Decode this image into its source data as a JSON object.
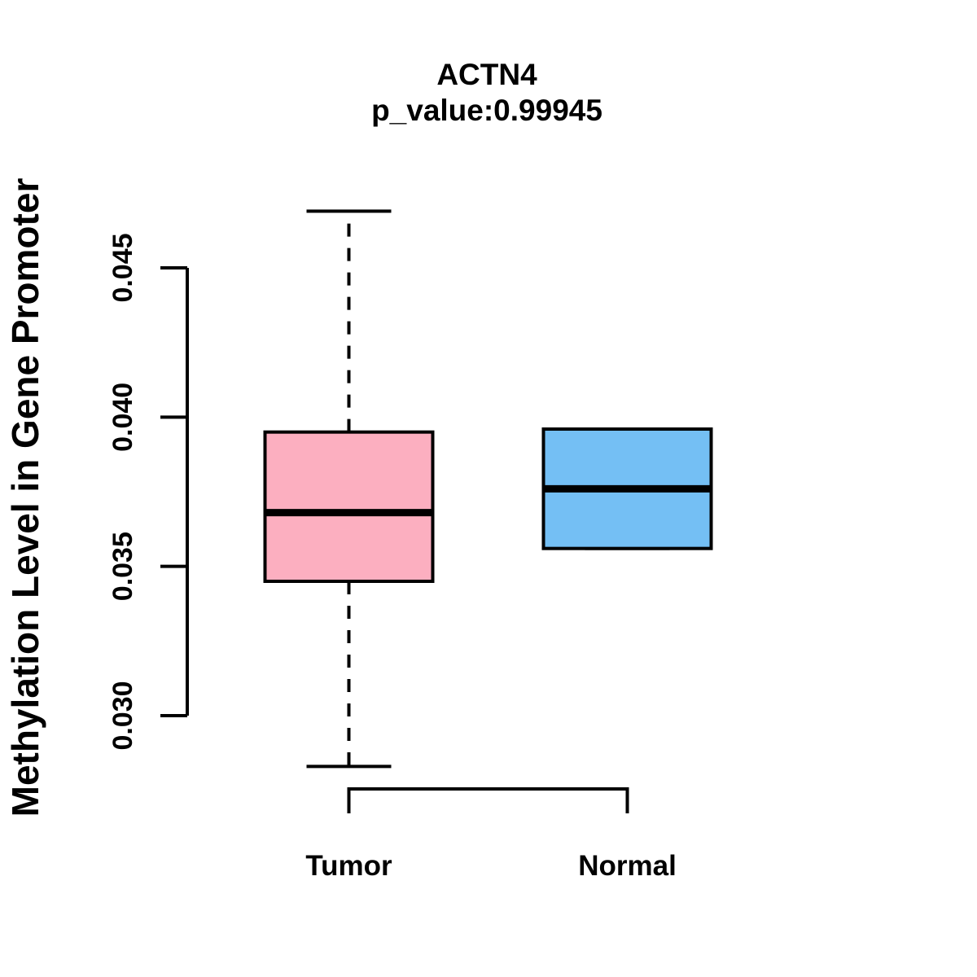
{
  "chart_data": {
    "type": "boxplot",
    "title": "ACTN4",
    "subtitle": "p_value:0.99945",
    "p_value": 0.99945,
    "ylabel": "Methylation Level in Gene Promoter",
    "xlabel": "",
    "categories": [
      "Tumor",
      "Normal"
    ],
    "yticks": [
      {
        "value": 0.03,
        "label": "0.030"
      },
      {
        "value": 0.035,
        "label": "0.035"
      },
      {
        "value": 0.04,
        "label": "0.040"
      },
      {
        "value": 0.045,
        "label": "0.045"
      }
    ],
    "ylim": [
      0.0283,
      0.0469
    ],
    "grid": false,
    "legend": false,
    "line_color": "#000000",
    "background_color": "#ffffff",
    "series": [
      {
        "name": "Tumor",
        "fill_color": "#FCAFC0",
        "whisker_low": 0.0283,
        "q1": 0.0345,
        "median": 0.0368,
        "q3": 0.0395,
        "whisker_high": 0.0469
      },
      {
        "name": "Normal",
        "fill_color": "#74BFF4",
        "whisker_low": 0.0356,
        "q1": 0.0356,
        "median": 0.0376,
        "q3": 0.0396,
        "whisker_high": 0.0396
      }
    ]
  }
}
